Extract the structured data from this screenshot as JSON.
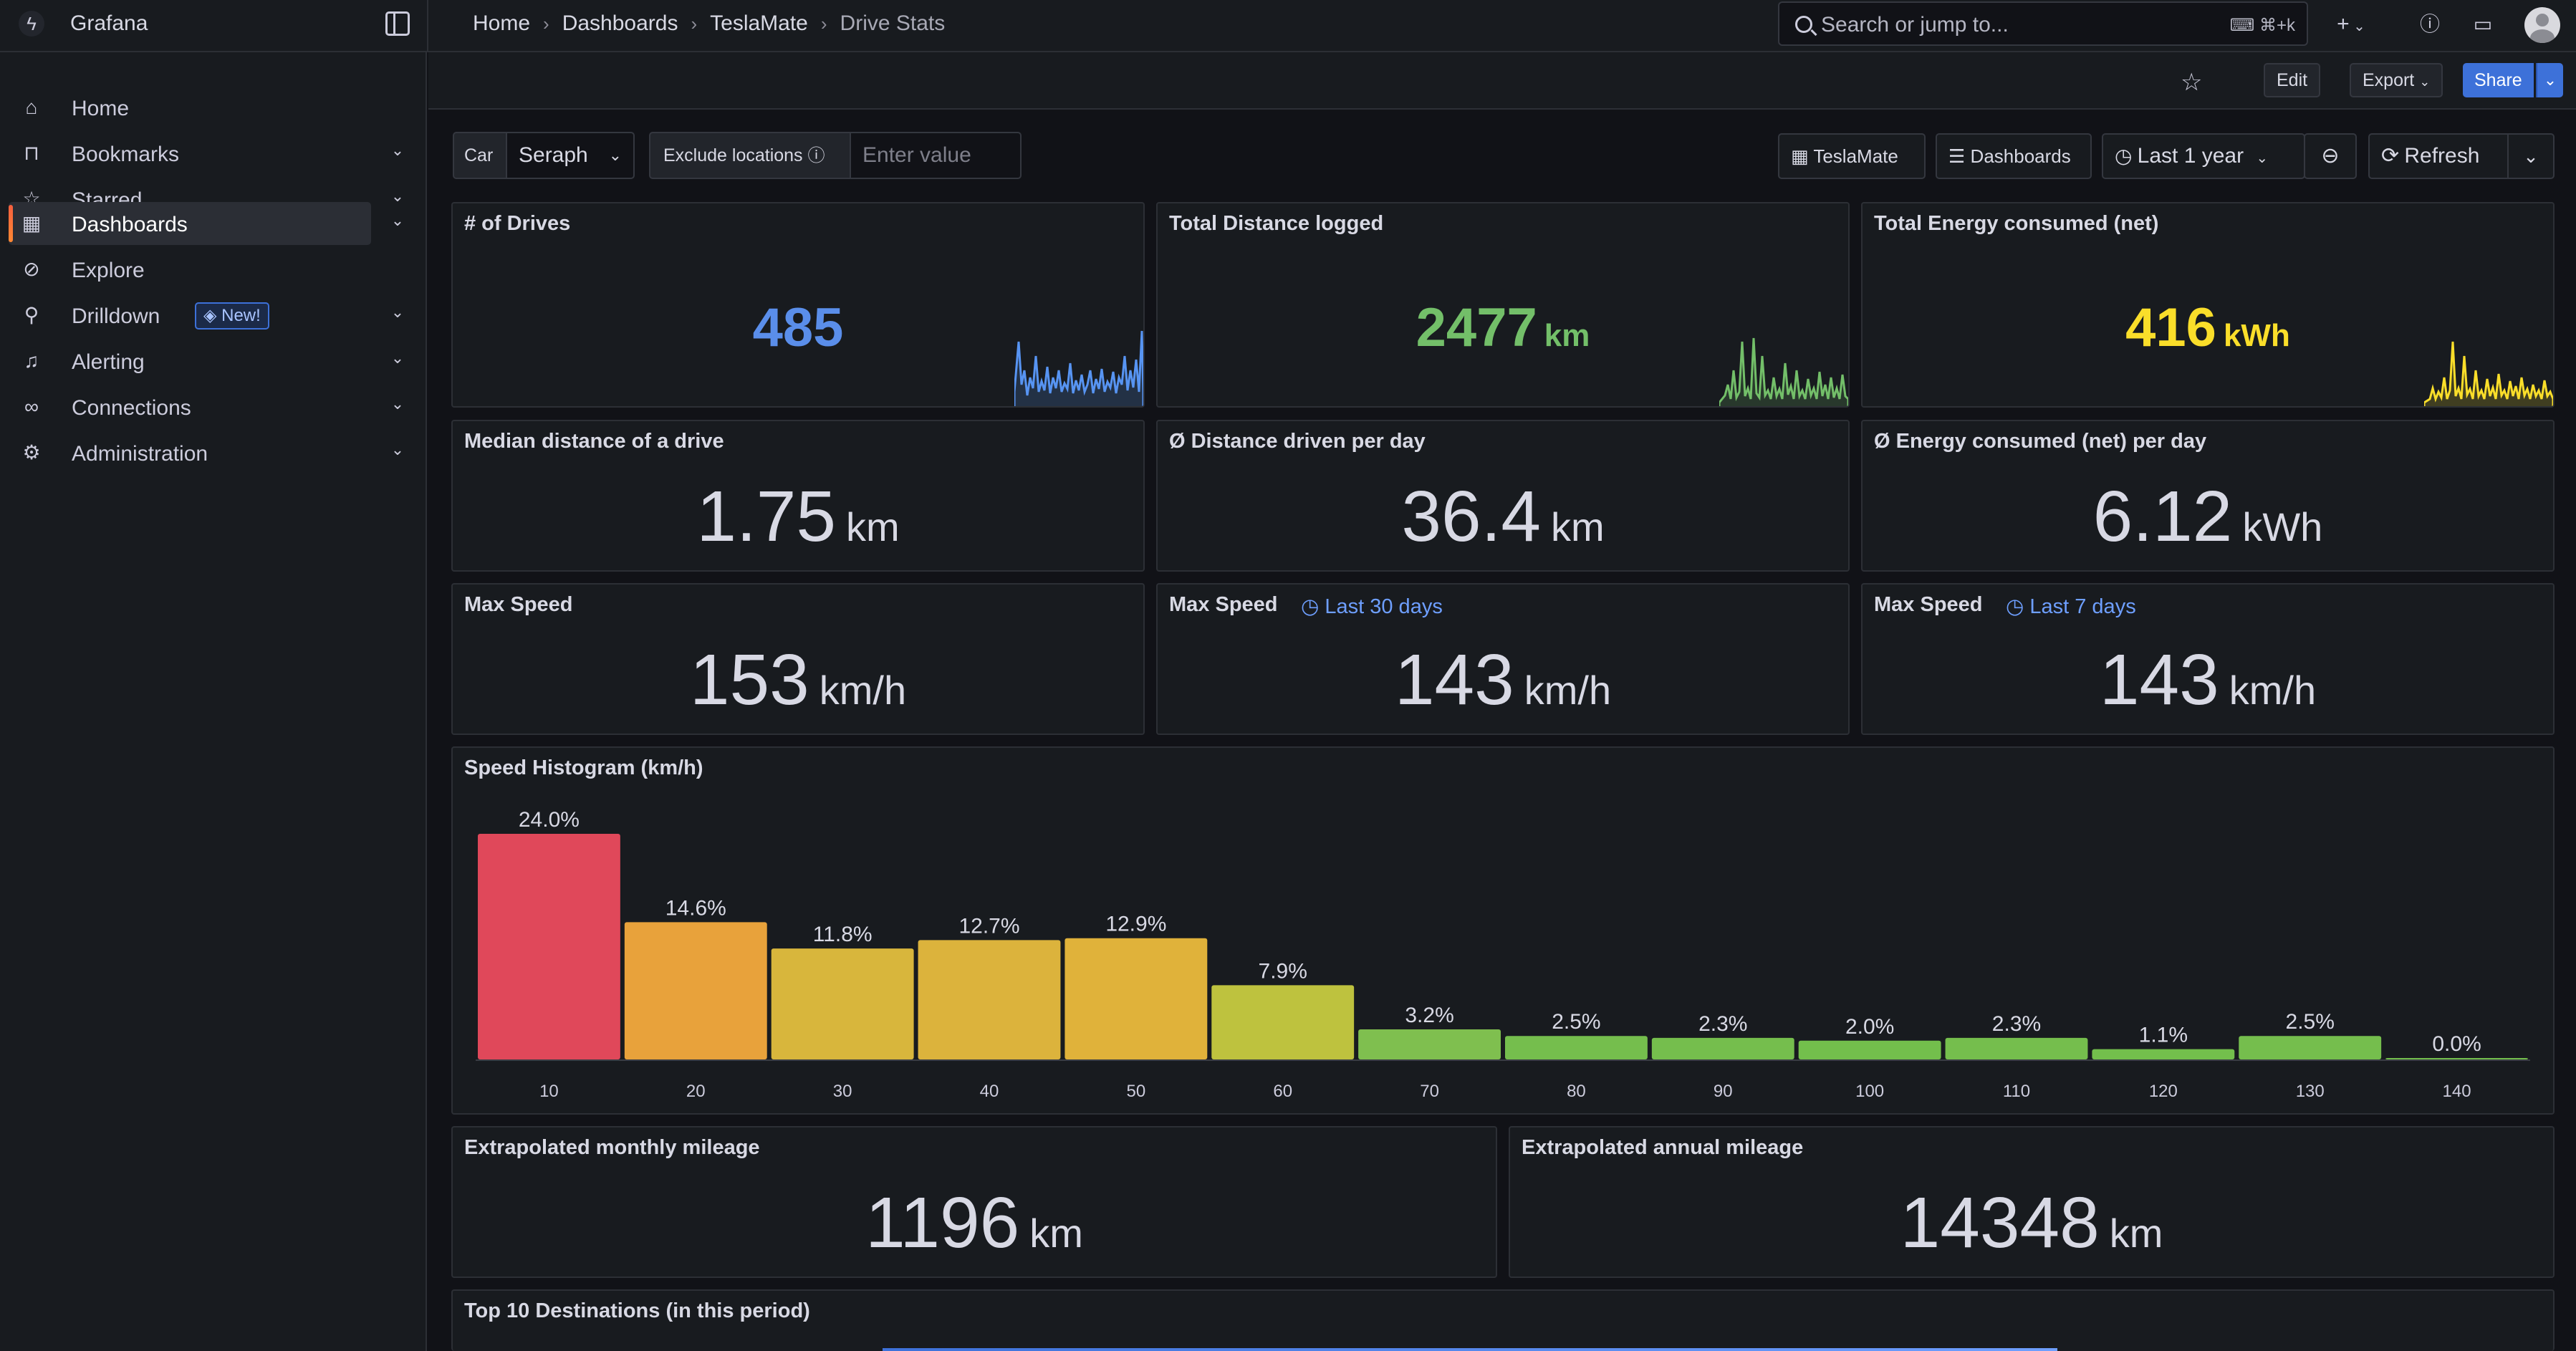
{
  "app": {
    "brand": "Grafana"
  },
  "breadcrumb": [
    "Home",
    "Dashboards",
    "TeslaMate",
    "Drive Stats"
  ],
  "search": {
    "placeholder": "Search or jump to...",
    "shortcut": "⌘+k"
  },
  "toolbar": {
    "edit": "Edit",
    "export": "Export",
    "share": "Share"
  },
  "sidebar": {
    "items": [
      {
        "label": "Home",
        "icon": "home-icon"
      },
      {
        "label": "Bookmarks",
        "icon": "bookmark-icon"
      },
      {
        "label": "Starred",
        "icon": "star-icon"
      },
      {
        "label": "Dashboards",
        "icon": "apps-icon"
      },
      {
        "label": "Explore",
        "icon": "compass-icon"
      },
      {
        "label": "Drilldown",
        "icon": "microscope-icon",
        "badge": "New!"
      },
      {
        "label": "Alerting",
        "icon": "bell-icon"
      },
      {
        "label": "Connections",
        "icon": "link-icon"
      },
      {
        "label": "Administration",
        "icon": "cog-icon"
      }
    ]
  },
  "variables": {
    "car_label": "Car",
    "car_value": "Seraph",
    "exclude_label": "Exclude locations",
    "exclude_placeholder": "Enter value"
  },
  "controls": {
    "teslamate": "TeslaMate",
    "dashboards": "Dashboards",
    "time_range": "Last 1 year",
    "refresh": "Refresh"
  },
  "colors": {
    "blue": "#5794f2",
    "green": "#73bf69",
    "yellow": "#fade2a",
    "red": "#e24d42",
    "orange": "#ff9830",
    "accent": "#3d71d9"
  },
  "panels": {
    "drives": {
      "title": "# of Drives",
      "value": "485",
      "unit": ""
    },
    "distance": {
      "title": "Total Distance logged",
      "value": "2477",
      "unit": "km"
    },
    "energy": {
      "title": "Total Energy consumed (net)",
      "value": "416",
      "unit": "kWh"
    },
    "median": {
      "title": "Median distance of a drive",
      "value": "1.75",
      "unit": "km"
    },
    "dist_per_day": {
      "title": "Ø Distance driven per day",
      "value": "36.4",
      "unit": "km"
    },
    "energy_per_day": {
      "title": "Ø Energy consumed (net) per day",
      "value": "6.12",
      "unit": "kWh"
    },
    "max_speed": {
      "title": "Max Speed",
      "value": "153",
      "unit": "km/h"
    },
    "max_speed_30": {
      "title": "Max Speed",
      "sub": "Last 30 days",
      "value": "143",
      "unit": "km/h"
    },
    "max_speed_7": {
      "title": "Max Speed",
      "sub": "Last 7 days",
      "value": "143",
      "unit": "km/h"
    },
    "histogram": {
      "title": "Speed Histogram (km/h)"
    },
    "monthly": {
      "title": "Extrapolated monthly mileage",
      "value": "1196",
      "unit": "km"
    },
    "annual": {
      "title": "Extrapolated annual mileage",
      "value": "14348",
      "unit": "km"
    },
    "destinations": {
      "title": "Top 10 Destinations (in this period)"
    }
  },
  "chart_data": {
    "type": "bar",
    "title": "Speed Histogram (km/h)",
    "categories": [
      "10",
      "20",
      "30",
      "40",
      "50",
      "60",
      "70",
      "80",
      "90",
      "100",
      "110",
      "120",
      "130",
      "140"
    ],
    "values": [
      24.0,
      14.6,
      11.8,
      12.7,
      12.9,
      7.9,
      3.2,
      2.5,
      2.3,
      2.0,
      2.3,
      1.1,
      2.5,
      0.0
    ],
    "labels": [
      "24.0%",
      "14.6%",
      "11.8%",
      "12.7%",
      "12.9%",
      "7.9%",
      "3.2%",
      "2.5%",
      "2.3%",
      "2.0%",
      "2.3%",
      "1.1%",
      "2.5%",
      "0.0%"
    ],
    "colors": [
      "#e0485a",
      "#e8a23b",
      "#d8b63c",
      "#dcb33c",
      "#e0b23a",
      "#bec23e",
      "#7fbf4f",
      "#75be4d",
      "#75be4d",
      "#73bf4c",
      "#75be4d",
      "#73bf4c",
      "#75be4d",
      "#73bf4c"
    ],
    "ylim": [
      0,
      24.0
    ],
    "grid": false
  }
}
